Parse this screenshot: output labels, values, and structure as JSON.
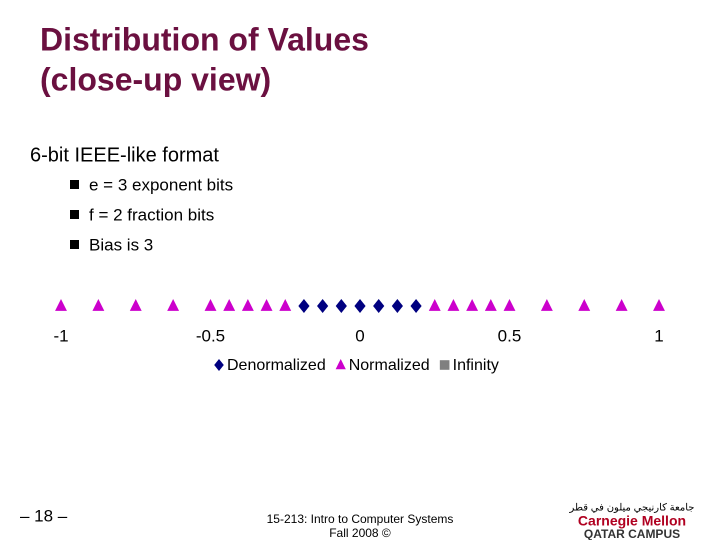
{
  "slide": {
    "title": [
      "Distribution of Values",
      "(close-up view)"
    ],
    "heading": "6-bit IEEE-like format",
    "bullets": [
      "e = 3 exponent bits",
      "f = 2 fraction bits",
      "Bias is 3"
    ],
    "footer": {
      "page": "– 18 –",
      "course": [
        "15-213: Intro to Computer Systems",
        "Fall 2008 ©"
      ],
      "logo": [
        "جامعة كارنيجي ميلون في قطر",
        "Carnegie Mellon",
        "QATAR CAMPUS"
      ]
    }
  },
  "chart_data": {
    "type": "scatter",
    "xlim": [
      -1,
      1
    ],
    "xticks": [
      -1,
      -0.5,
      0,
      0.5,
      1
    ],
    "series": [
      {
        "name": "Denormalized",
        "color": "#000080",
        "marker": "diamond",
        "x": [
          -0.1875,
          -0.125,
          -0.0625,
          0,
          0.0625,
          0.125,
          0.1875
        ]
      },
      {
        "name": "Normalized",
        "color": "#cc00cc",
        "marker": "triangle",
        "x": [
          -1,
          -0.875,
          -0.75,
          -0.625,
          -0.5,
          -0.4375,
          -0.375,
          -0.3125,
          -0.25,
          0.25,
          0.3125,
          0.375,
          0.4375,
          0.5,
          0.625,
          0.75,
          0.875,
          1
        ]
      },
      {
        "name": "Infinity",
        "color": "#808080",
        "marker": "square",
        "x": []
      }
    ]
  }
}
